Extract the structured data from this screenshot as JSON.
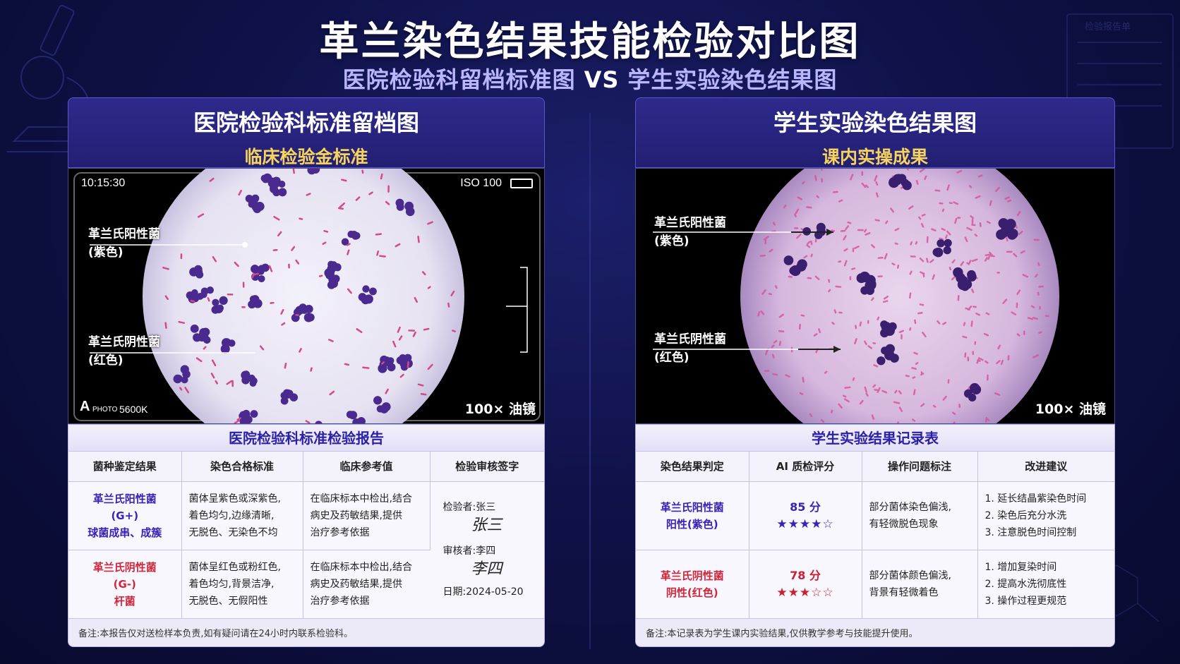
{
  "header": {
    "title": "革兰染色结果技能检验对比图",
    "subtitle_left": "医院检验科留档标准图",
    "subtitle_vs": "VS",
    "subtitle_right": "学生实验染色结果图"
  },
  "deco": {
    "stamp_text": "检验报告单"
  },
  "left": {
    "head_title": "医院检验科标准留档图",
    "head_sub": "临床检验金标准",
    "camera": {
      "time": "10:15:30",
      "iso": "ISO 100",
      "mode": "A",
      "brand": "PHOTO",
      "wb": "5600K"
    },
    "label_pos_1": "革兰氏阳性菌",
    "label_pos_2": "(紫色)",
    "label_neg_1": "革兰氏阴性菌",
    "label_neg_2": "(红色)",
    "magnification": "100× 油镜",
    "report": {
      "title": "医院检验科标准检验报告",
      "columns": [
        "菌种鉴定结果",
        "染色合格标准",
        "临床参考值",
        "检验审核签字"
      ],
      "rows": [
        {
          "name": [
            "革兰氏阳性菌",
            "(G+)",
            "球菌成串、成簇"
          ],
          "standard": [
            "菌体呈紫色或深紫色,",
            "着色均匀,边缘清晰,",
            "无脱色、无染色不均"
          ],
          "ref": [
            "在临床标本中检出,结合",
            "病史及药敏结果,提供",
            "治疗参考依据"
          ]
        },
        {
          "name": [
            "革兰氏阴性菌",
            "(G-)",
            "杆菌"
          ],
          "standard": [
            "菌体呈红色或粉红色,",
            "着色均匀,背景洁净,",
            "无脱色、无假阳性"
          ],
          "ref": [
            "在临床标本中检出,结合",
            "病史及药敏结果,提供",
            "治疗参考依据"
          ]
        }
      ],
      "sign": {
        "inspector": "检验者:张三",
        "sig1": "张三",
        "reviewer": "审核者:李四",
        "sig2": "李四",
        "date": "日期:2024-05-20"
      },
      "note": "备注:本报告仅对送检样本负责,如有疑问请在24小时内联系检验科。"
    }
  },
  "right": {
    "head_title": "学生实验染色结果图",
    "head_sub": "课内实操成果",
    "label_pos_1": "革兰氏阳性菌",
    "label_pos_2": "(紫色)",
    "label_neg_1": "革兰氏阴性菌",
    "label_neg_2": "(红色)",
    "magnification": "100× 油镜",
    "report": {
      "title": "学生实验结果记录表",
      "columns": [
        "染色结果判定",
        "AI 质检评分",
        "操作问题标注",
        "改进建议"
      ],
      "rows": [
        {
          "name": [
            "革兰氏阳性菌",
            "阳性(紫色)"
          ],
          "score": "85 分",
          "stars": "★★★★☆",
          "issue": [
            "部分菌体染色偏浅,",
            "有轻微脱色现象"
          ],
          "advice": [
            "1. 延长结晶紫染色时间",
            "2. 染色后充分水洗",
            "3. 注意脱色时间控制"
          ]
        },
        {
          "name": [
            "革兰氏阴性菌",
            "阴性(红色)"
          ],
          "score": "78 分",
          "stars": "★★★☆☆",
          "issue": [
            "部分菌体颜色偏浅,",
            "背景有轻微着色"
          ],
          "advice": [
            "1. 增加复染时间",
            "2. 提高水洗彻底性",
            "3. 操作过程更规范"
          ]
        }
      ],
      "note": "备注:本记录表为学生课内实验结果,仅供教学参考与技能提升使用。"
    }
  },
  "colors": {
    "purple": "#3a22b8",
    "red": "#d2263a",
    "gold": "#f6d35c",
    "bg": "#0f1248"
  }
}
